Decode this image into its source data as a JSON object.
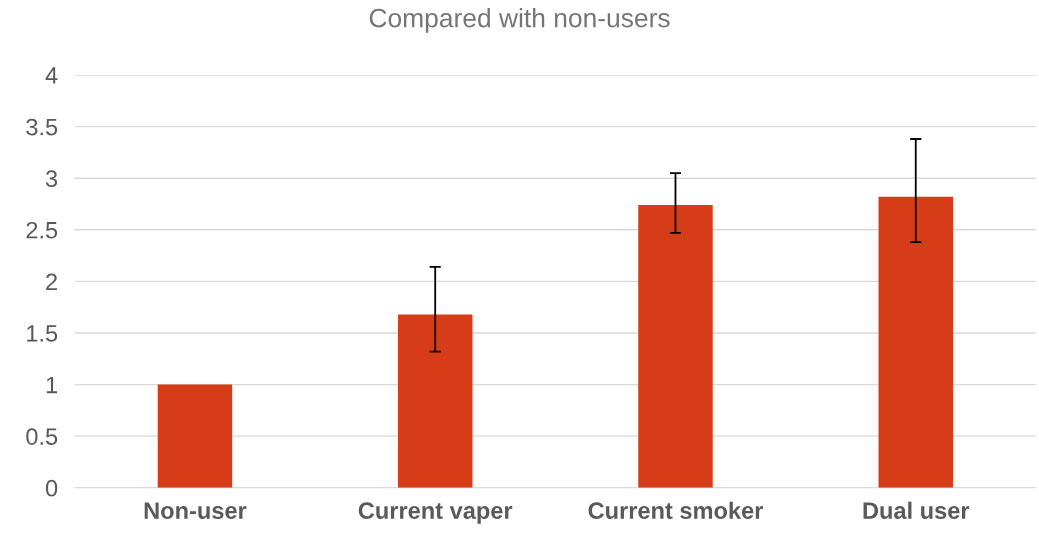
{
  "chart_data": {
    "type": "bar",
    "title": "Compared with non-users",
    "categories": [
      "Non-user",
      "Current vaper",
      "Current smoker",
      "Dual user"
    ],
    "values": [
      1.0,
      1.68,
      2.74,
      2.82
    ],
    "errors": [
      null,
      [
        1.32,
        2.14
      ],
      [
        2.47,
        3.05
      ],
      [
        2.38,
        3.38
      ]
    ],
    "color": "#d63c17",
    "ylim": [
      0,
      4
    ],
    "yticks": [
      0,
      0.5,
      1,
      1.5,
      2,
      2.5,
      3,
      3.5,
      4
    ],
    "grid": "y",
    "legend": false
  }
}
